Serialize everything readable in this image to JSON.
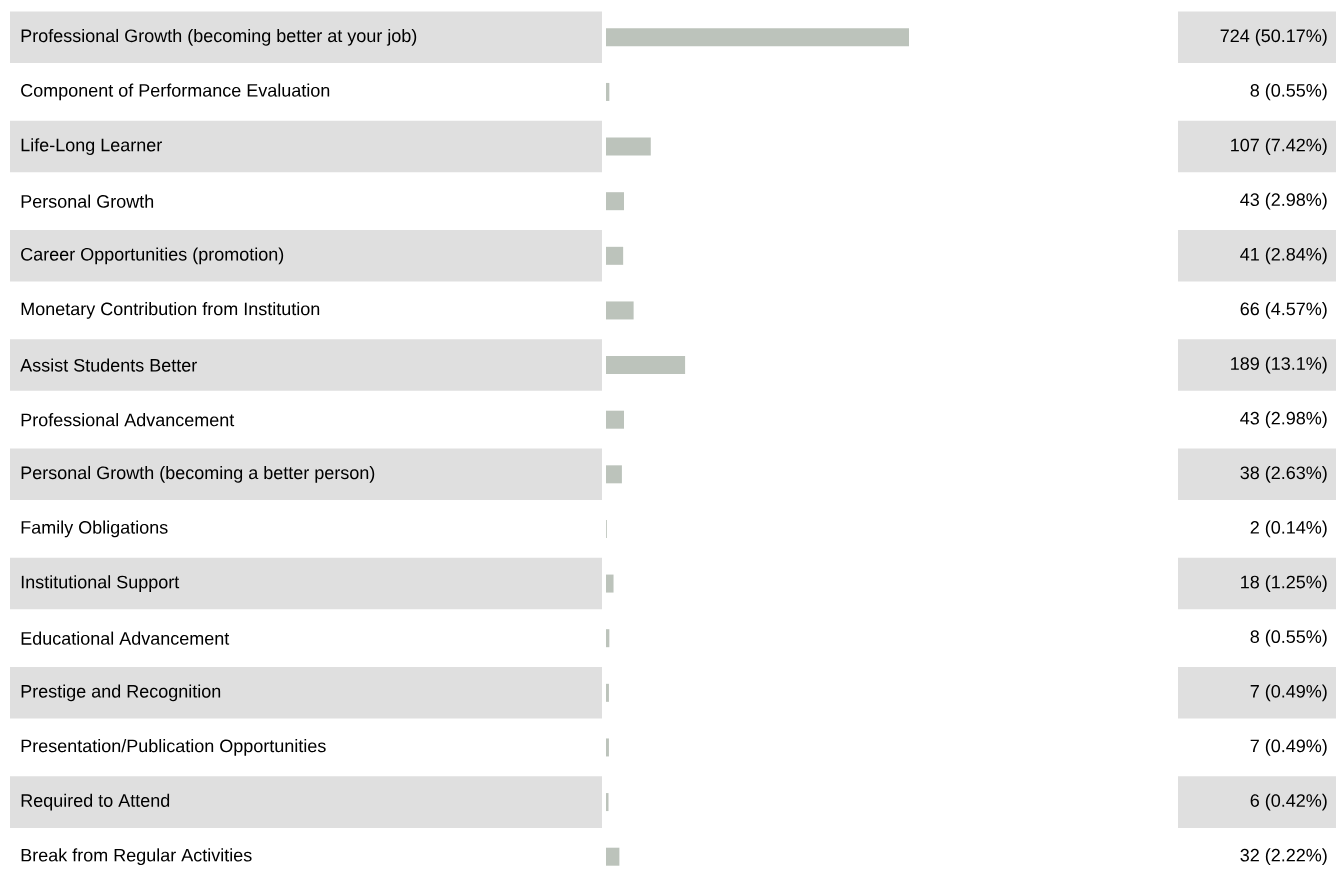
{
  "chart_data": {
    "type": "bar",
    "orientation": "horizontal",
    "categories": [
      "Professional Growth (becoming better at your job)",
      "Component of Performance Evaluation",
      "Life-Long Learner",
      "Personal Growth",
      "Career Opportunities (promotion)",
      "Monetary Contribution from Institution",
      "Assist Students Better",
      "Professional Advancement",
      "Personal Growth (becoming a better person)",
      "Family Obligations",
      "Institutional Support",
      "Educational Advancement",
      "Prestige and Recognition",
      "Presentation/Publication Opportunities",
      "Required to Attend",
      "Break from Regular Activities"
    ],
    "values": [
      724,
      8,
      107,
      43,
      41,
      66,
      189,
      43,
      38,
      2,
      18,
      8,
      7,
      7,
      6,
      32
    ],
    "value_labels": [
      "724 (50.17%)",
      "8 (0.55%)",
      "107 (7.42%)",
      "43 (2.98%)",
      "41 (2.84%)",
      "66 (4.57%)",
      "189 (13.1%)",
      "43 (2.98%)",
      "38 (2.63%)",
      "2 (0.14%)",
      "18 (1.25%)",
      "8 (0.55%)",
      "7 (0.49%)",
      "7 (0.49%)",
      "6 (0.42%)",
      "32 (2.22%)"
    ],
    "color": "#bcc3bb"
  }
}
